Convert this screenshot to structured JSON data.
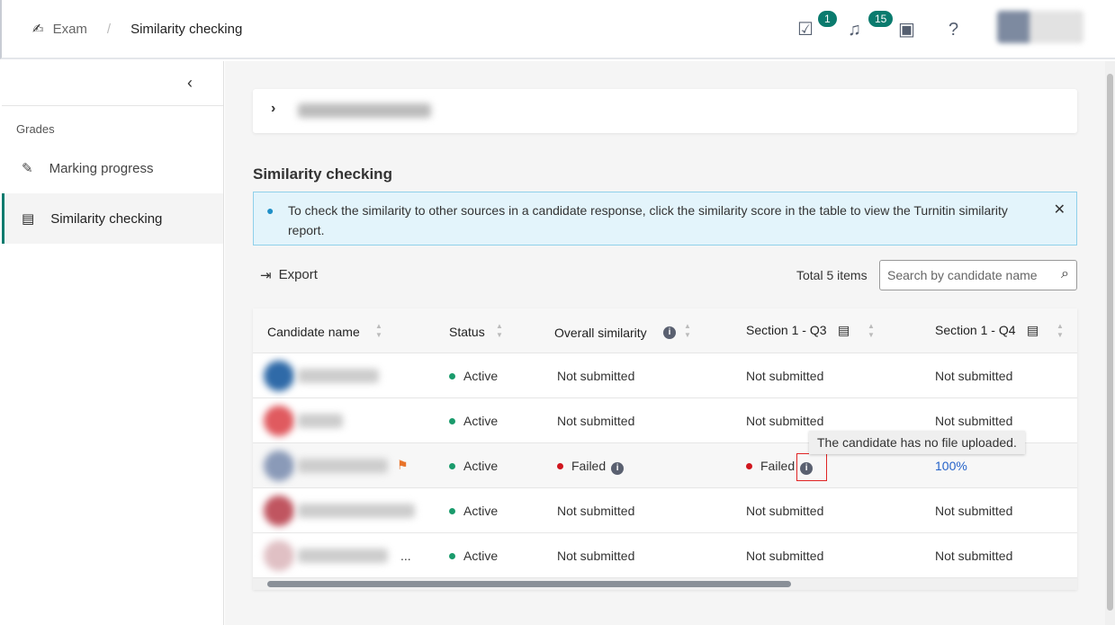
{
  "breadcrumb": {
    "parent": "Exam",
    "current": "Similarity checking"
  },
  "header": {
    "tasks_badge": "1",
    "notifications_badge": "15"
  },
  "sidebar": {
    "group": "Grades",
    "items": [
      {
        "label": "Marking progress"
      },
      {
        "label": "Similarity checking"
      }
    ]
  },
  "main": {
    "title": "Similarity checking",
    "info": "To check the similarity to other sources in a candidate response, click the similarity score in the table to view the Turnitin similarity report.",
    "export": "Export",
    "total": "Total 5 items",
    "search_placeholder": "Search by candidate name"
  },
  "table": {
    "headers": [
      "Candidate name",
      "Status",
      "Overall similarity",
      "Section 1 - Q3",
      "Section 1 - Q4"
    ],
    "rows": [
      {
        "status": "Active",
        "overall": "Not submitted",
        "q3": "Not submitted",
        "q4": "Not submitted"
      },
      {
        "status": "Active",
        "overall": "Not submitted",
        "q3": "Not submitted",
        "q4": "Not submitted"
      },
      {
        "status": "Active",
        "overall": "Failed",
        "q3": "Failed",
        "q4": "100%",
        "flagged": true
      },
      {
        "status": "Active",
        "overall": "Not submitted",
        "q3": "Not submitted",
        "q4": "Not submitted"
      },
      {
        "status": "Active",
        "overall": "Not submitted",
        "q3": "Not submitted",
        "q4": "Not submitted",
        "truncated": "..."
      }
    ]
  },
  "tooltip": "The candidate has no file uploaded.",
  "colors": {
    "accent": "#0a7b6e",
    "active": "#1a9b6c",
    "failed": "#d0161e",
    "link": "#2563c9",
    "flag": "#e8742a"
  }
}
